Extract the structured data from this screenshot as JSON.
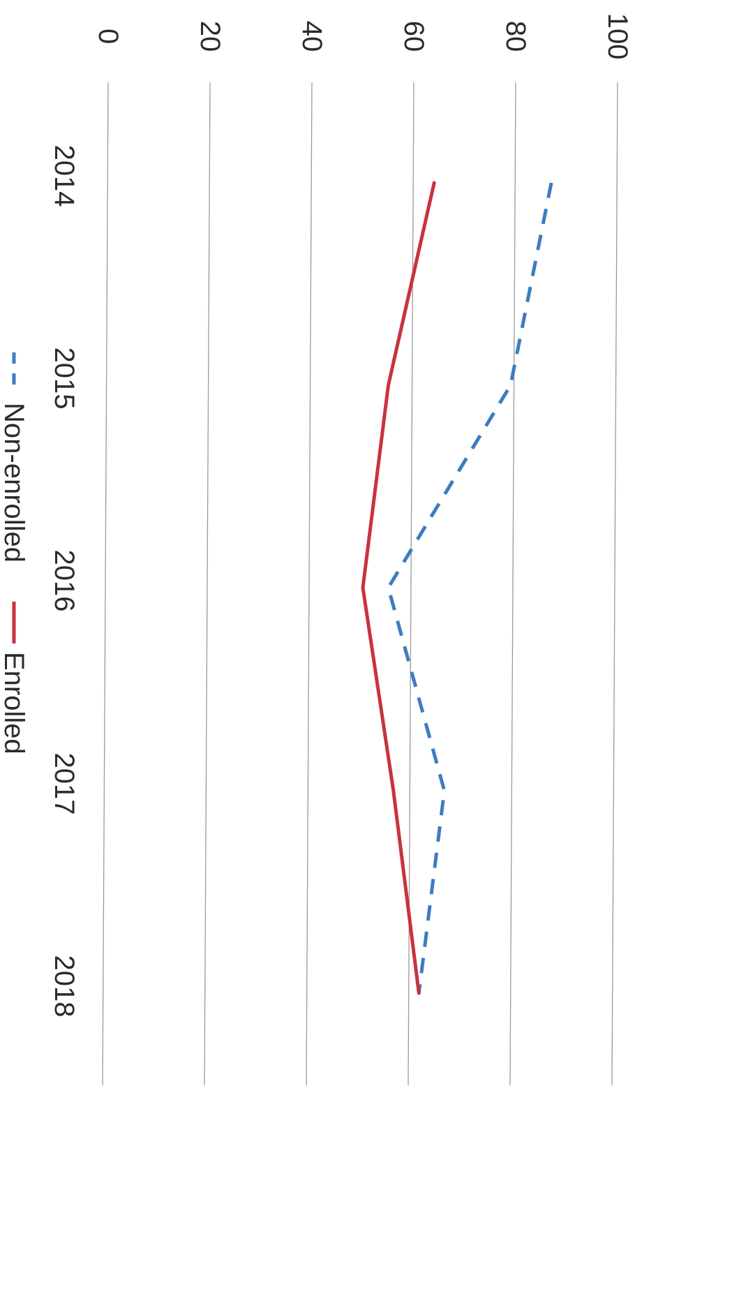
{
  "chart_data": {
    "type": "line",
    "orientation": "rotated-90-clockwise",
    "title": "",
    "xlabel": "",
    "ylabel": "",
    "categories": [
      "2014",
      "2015",
      "2016",
      "2017",
      "2018"
    ],
    "y_ticks": [
      "0",
      "20",
      "40",
      "60",
      "80",
      "100"
    ],
    "ylim": [
      0,
      100
    ],
    "grid": true,
    "legend_position": "bottom",
    "series": [
      {
        "name": "Non-enrolled",
        "values": [
          87,
          79,
          55,
          66,
          61
        ],
        "color": "#3e7cc1",
        "style": "dashed"
      },
      {
        "name": "Enrolled",
        "values": [
          64,
          55,
          50,
          56,
          61
        ],
        "color": "#c8323f",
        "style": "solid"
      }
    ]
  }
}
